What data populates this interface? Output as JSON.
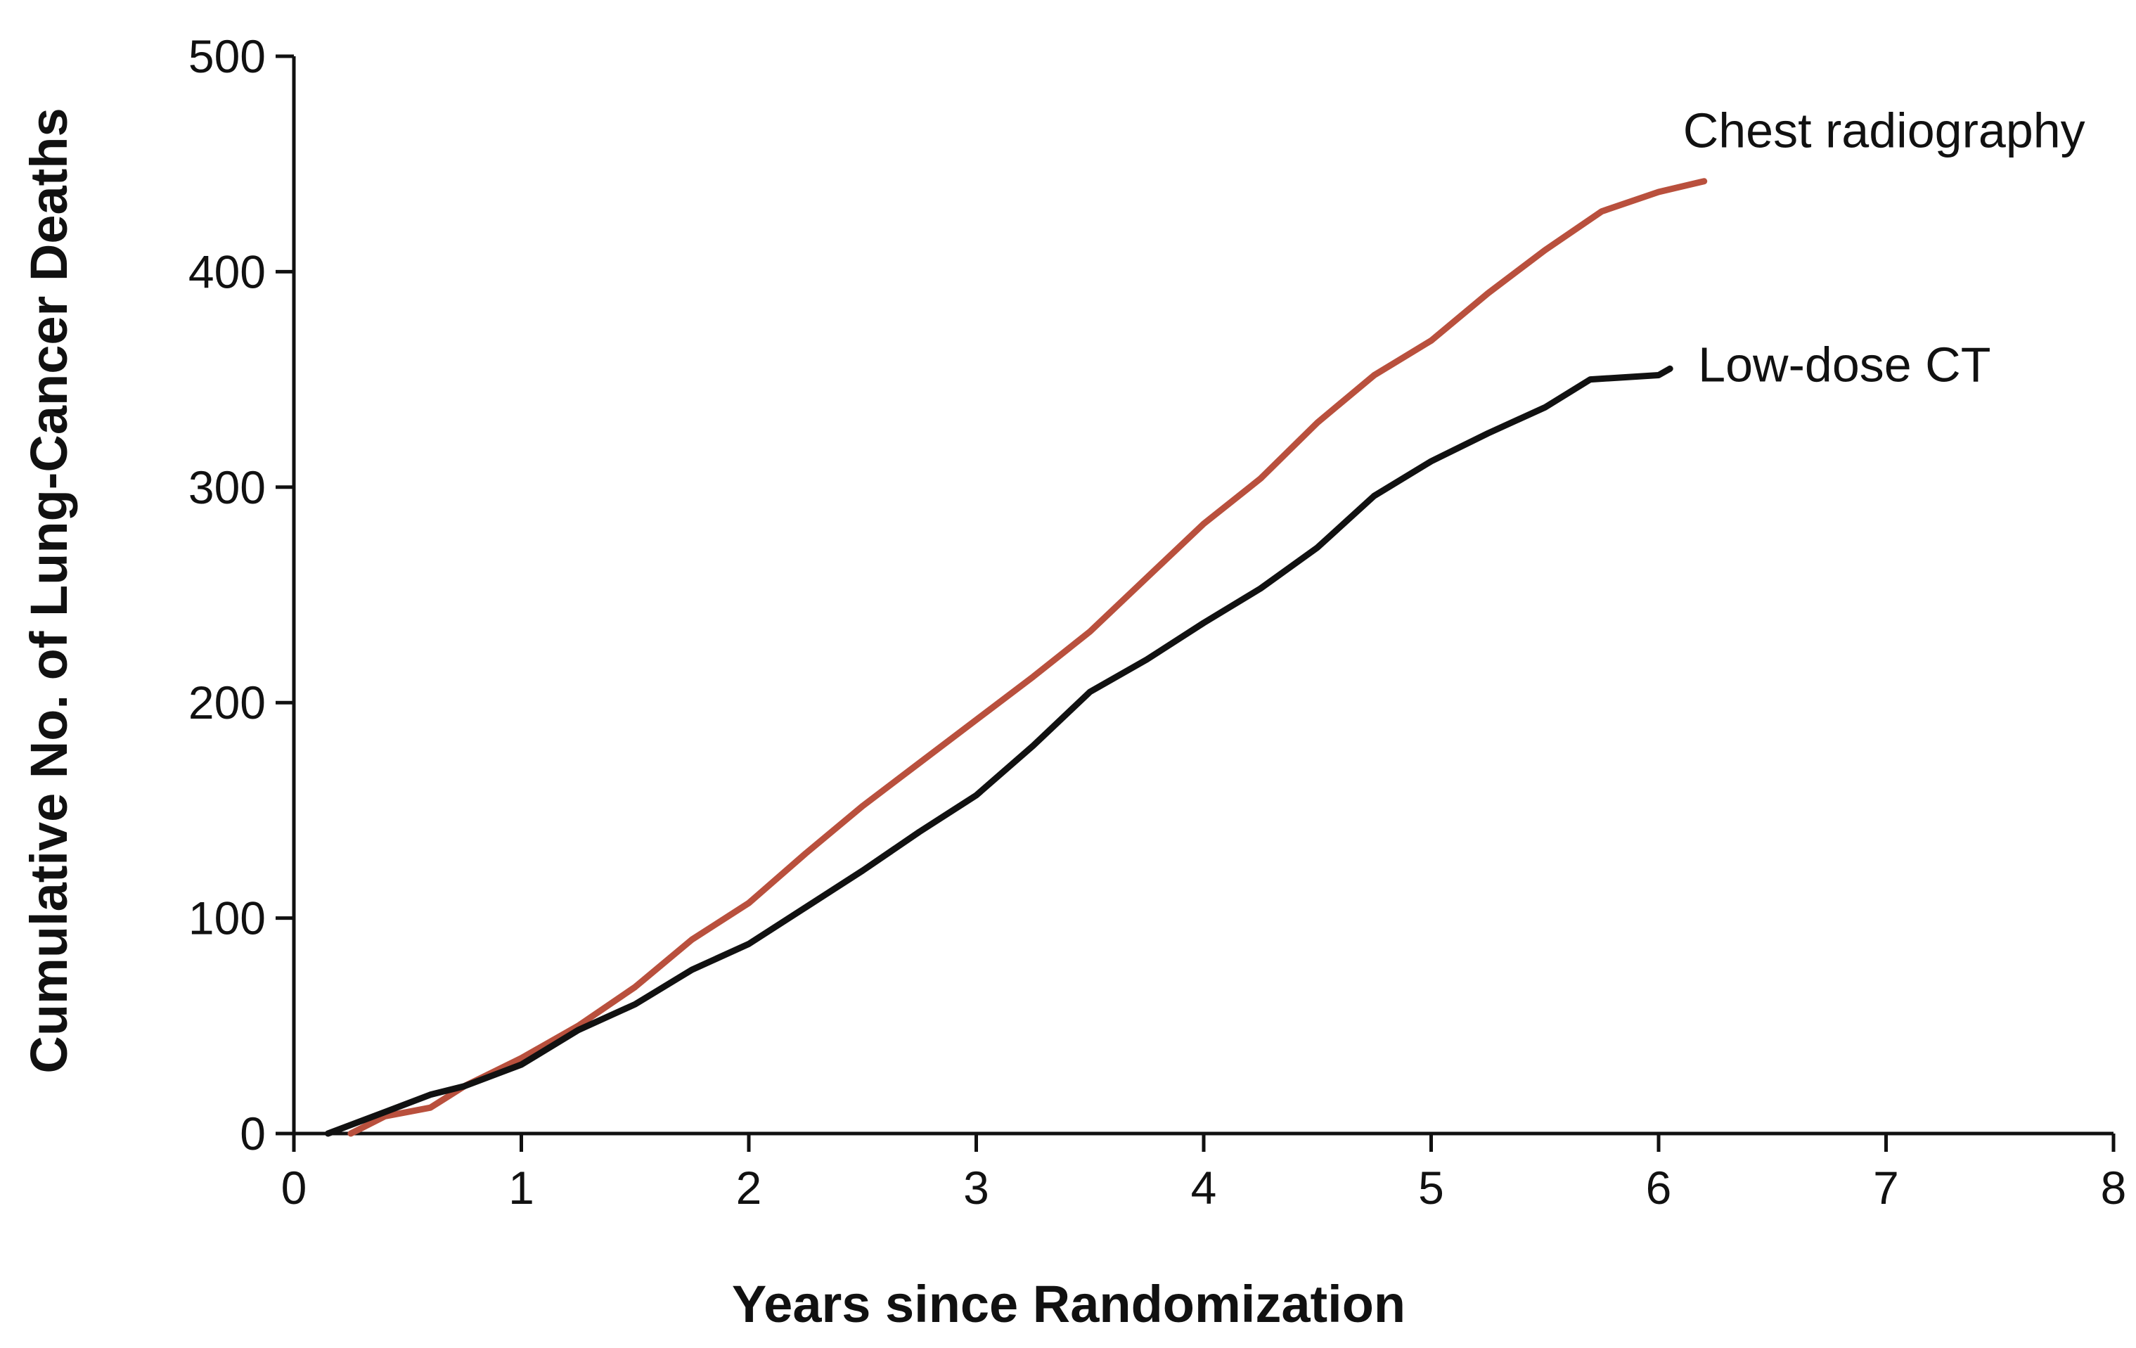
{
  "chart_data": {
    "type": "line",
    "title": "",
    "xlabel": "Years since Randomization",
    "ylabel": "Cumulative No. of Lung-Cancer Deaths",
    "xlim": [
      0,
      8
    ],
    "ylim": [
      0,
      500
    ],
    "xticks": [
      "0",
      "1",
      "2",
      "3",
      "4",
      "5",
      "6",
      "7",
      "8"
    ],
    "yticks": [
      "0",
      "100",
      "200",
      "300",
      "400",
      "500"
    ],
    "grid": false,
    "legend": "direct labels at line ends",
    "series": [
      {
        "name": "Chest radiography",
        "color": "#B9503D",
        "x": [
          0.25,
          0.4,
          0.6,
          0.75,
          1.0,
          1.25,
          1.5,
          1.75,
          2.0,
          2.25,
          2.5,
          2.75,
          3.0,
          3.25,
          3.5,
          3.75,
          4.0,
          4.25,
          4.5,
          4.75,
          5.0,
          5.25,
          5.5,
          5.75,
          6.0,
          6.2
        ],
        "values": [
          0,
          8,
          12,
          22,
          35,
          50,
          68,
          90,
          107,
          130,
          152,
          172,
          192,
          212,
          233,
          258,
          283,
          304,
          330,
          352,
          368,
          390,
          410,
          428,
          437,
          442
        ]
      },
      {
        "name": "Low-dose CT",
        "color": "#111111",
        "x": [
          0.15,
          0.4,
          0.6,
          0.75,
          1.0,
          1.25,
          1.5,
          1.75,
          2.0,
          2.25,
          2.5,
          2.75,
          3.0,
          3.25,
          3.5,
          3.75,
          4.0,
          4.25,
          4.5,
          4.75,
          5.0,
          5.25,
          5.5,
          5.7,
          6.0,
          6.05
        ],
        "values": [
          0,
          10,
          18,
          22,
          32,
          48,
          60,
          76,
          88,
          105,
          122,
          140,
          157,
          180,
          205,
          220,
          237,
          253,
          272,
          296,
          312,
          325,
          337,
          350,
          352,
          355
        ]
      }
    ]
  }
}
